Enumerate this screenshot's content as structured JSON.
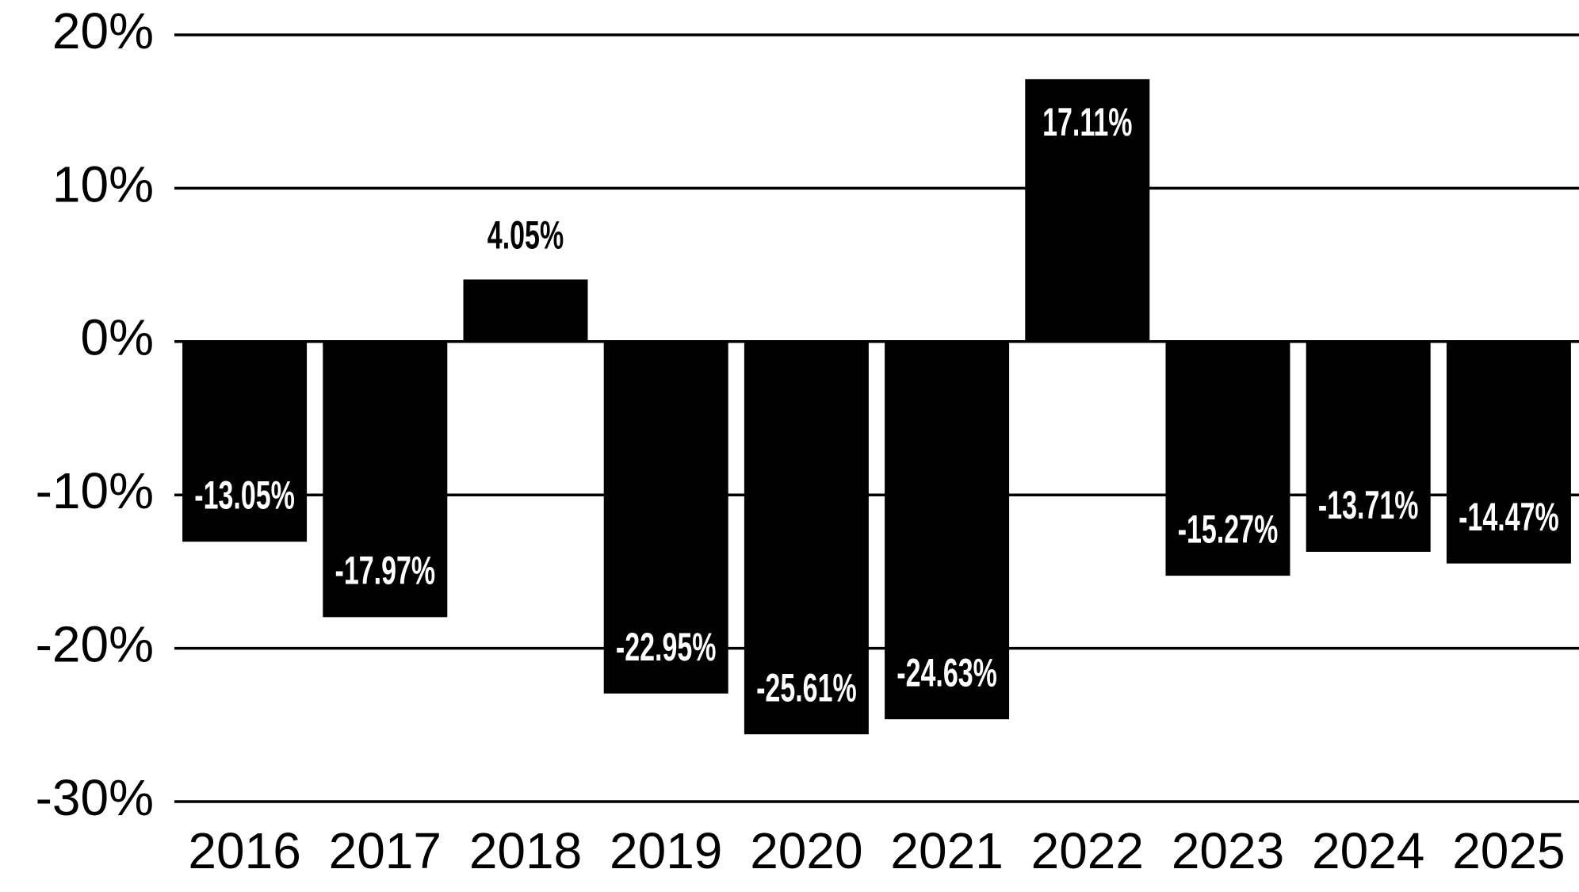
{
  "chart_data": {
    "type": "bar",
    "categories": [
      "2016",
      "2017",
      "2018",
      "2019",
      "2020",
      "2021",
      "2022",
      "2023",
      "2024",
      "2025"
    ],
    "values": [
      -13.05,
      -17.97,
      4.05,
      -22.95,
      -25.61,
      -24.63,
      17.11,
      -15.27,
      -13.71,
      -14.47
    ],
    "value_labels": [
      "-13.05%",
      "-17.97%",
      "4.05%",
      "-22.95%",
      "-25.61%",
      "-24.63%",
      "17.11%",
      "-15.27%",
      "-13.71%",
      "-14.47%"
    ],
    "color": "#000000",
    "ylim": [
      -30,
      20
    ],
    "yticks": [
      {
        "value": -30,
        "label": "-30%"
      },
      {
        "value": -20,
        "label": "-20%"
      },
      {
        "value": -10,
        "label": "-10%"
      },
      {
        "value": 0,
        "label": "0%"
      },
      {
        "value": 10,
        "label": "10%"
      },
      {
        "value": 20,
        "label": "20%"
      }
    ],
    "grid": true
  }
}
